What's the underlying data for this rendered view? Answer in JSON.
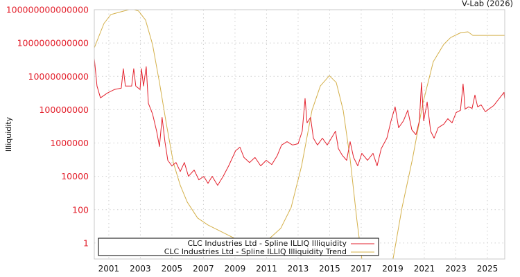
{
  "header": {
    "source": "V-Lab (2026)"
  },
  "chart_data": {
    "type": "line",
    "title": "",
    "xlabel": "",
    "ylabel": "Illiquidity",
    "yscale": "log10",
    "xlim": [
      2000.08,
      2026.1
    ],
    "ylim_log10": [
      -0.96,
      14
    ],
    "grid": true,
    "legend_position": "bottom-left",
    "x_ticks": [
      2001,
      2003,
      2005,
      2007,
      2009,
      2011,
      2013,
      2015,
      2017,
      2019,
      2021,
      2023,
      2025
    ],
    "x_tick_labels": [
      "2001",
      "2003",
      "2005",
      "2007",
      "2009",
      "2011",
      "2013",
      "2015",
      "2017",
      "2019",
      "2021",
      "2023",
      "2025"
    ],
    "y_ticks_log10": [
      14,
      12,
      10,
      8,
      6,
      4,
      2,
      0
    ],
    "y_tick_labels": [
      "100000000000000",
      "1000000000000",
      "10000000000",
      "100000000",
      "1000000",
      "10000",
      "100",
      "1"
    ],
    "series": [
      {
        "name": "CLC Industries Ltd - Spline ILLIQ Illiquidity",
        "color": "#e3202c",
        "x": [
          2000.08,
          2000.25,
          2000.47,
          2000.91,
          2001.35,
          2001.79,
          2001.92,
          2002.05,
          2002.45,
          2002.58,
          2002.71,
          2002.98,
          2003.07,
          2003.2,
          2003.37,
          2003.51,
          2003.77,
          2004.03,
          2004.21,
          2004.38,
          2004.56,
          2004.74,
          2005.0,
          2005.26,
          2005.53,
          2005.79,
          2006.05,
          2006.41,
          2006.71,
          2007.02,
          2007.29,
          2007.55,
          2007.9,
          2008.25,
          2008.6,
          2009.04,
          2009.31,
          2009.57,
          2009.92,
          2010.27,
          2010.63,
          2010.98,
          2011.33,
          2011.68,
          2011.95,
          2012.3,
          2012.65,
          2013.0,
          2013.26,
          2013.44,
          2013.57,
          2013.79,
          2013.97,
          2014.23,
          2014.54,
          2014.85,
          2015.11,
          2015.37,
          2015.55,
          2015.81,
          2016.08,
          2016.3,
          2016.52,
          2016.78,
          2017.04,
          2017.4,
          2017.75,
          2018.01,
          2018.27,
          2018.63,
          2018.89,
          2019.15,
          2019.37,
          2019.68,
          2019.95,
          2020.21,
          2020.47,
          2020.69,
          2020.82,
          2020.96,
          2021.18,
          2021.4,
          2021.62,
          2021.88,
          2022.23,
          2022.49,
          2022.76,
          2023.02,
          2023.29,
          2023.46,
          2023.59,
          2023.81,
          2024.03,
          2024.21,
          2024.38,
          2024.6,
          2024.87,
          2025.4,
          2026.05,
          2026.09
        ],
        "log10_y": [
          11.08,
          9.42,
          8.71,
          9.0,
          9.21,
          9.29,
          10.46,
          9.42,
          9.42,
          10.46,
          9.42,
          9.21,
          10.46,
          9.42,
          10.58,
          8.38,
          7.75,
          6.71,
          5.79,
          7.54,
          6.08,
          4.96,
          4.63,
          4.83,
          4.29,
          4.83,
          4.0,
          4.38,
          3.79,
          4.0,
          3.58,
          4.0,
          3.46,
          4.0,
          4.63,
          5.54,
          5.75,
          5.13,
          4.83,
          5.13,
          4.63,
          4.96,
          4.71,
          5.25,
          5.88,
          6.08,
          5.88,
          5.96,
          6.71,
          8.67,
          7.21,
          7.54,
          6.29,
          5.88,
          6.29,
          5.88,
          6.29,
          6.71,
          5.67,
          5.25,
          4.96,
          6.08,
          5.13,
          4.63,
          5.38,
          4.96,
          5.38,
          4.63,
          5.67,
          6.29,
          7.33,
          8.17,
          6.92,
          7.33,
          7.96,
          6.79,
          6.5,
          7.33,
          9.63,
          7.33,
          8.46,
          6.71,
          6.29,
          6.92,
          7.13,
          7.46,
          7.21,
          7.83,
          7.96,
          9.54,
          8.04,
          8.17,
          8.08,
          8.88,
          8.17,
          8.29,
          7.88,
          8.25,
          9.04,
          8.67
        ]
      },
      {
        "name": "CLC Industries Ltd - Spline ILLIQ Illiquidity Trend",
        "color": "#d4b04a",
        "x": [
          2000.08,
          2000.69,
          2001.13,
          2001.79,
          2002.45,
          2002.89,
          2003.33,
          2003.77,
          2004.21,
          2004.65,
          2005.09,
          2005.53,
          2005.97,
          2006.63,
          2007.29,
          2009.04,
          2009.92,
          2011.02,
          2011.9,
          2012.56,
          2013.22,
          2013.88,
          2014.41,
          2014.98,
          2015.42,
          2015.86,
          2016.3,
          2016.74,
          2017.04,
          2017.84,
          2018.5,
          2019.02,
          2019.59,
          2020.25,
          2020.91,
          2021.57,
          2022.23,
          2022.67,
          2023.33,
          2023.77,
          2024.08,
          2026.1
        ],
        "log10_y": [
          11.71,
          13.17,
          13.71,
          13.88,
          14.04,
          13.92,
          13.38,
          11.92,
          9.63,
          7.13,
          4.83,
          3.46,
          2.46,
          1.5,
          1.08,
          0.25,
          -0.04,
          0.13,
          0.88,
          2.13,
          4.63,
          7.96,
          9.42,
          10.04,
          9.63,
          7.96,
          5.04,
          1.29,
          -0.96,
          -3,
          -3,
          -0.96,
          2.13,
          5.04,
          8.38,
          10.88,
          11.92,
          12.33,
          12.63,
          12.67,
          12.46,
          12.46
        ]
      }
    ]
  }
}
